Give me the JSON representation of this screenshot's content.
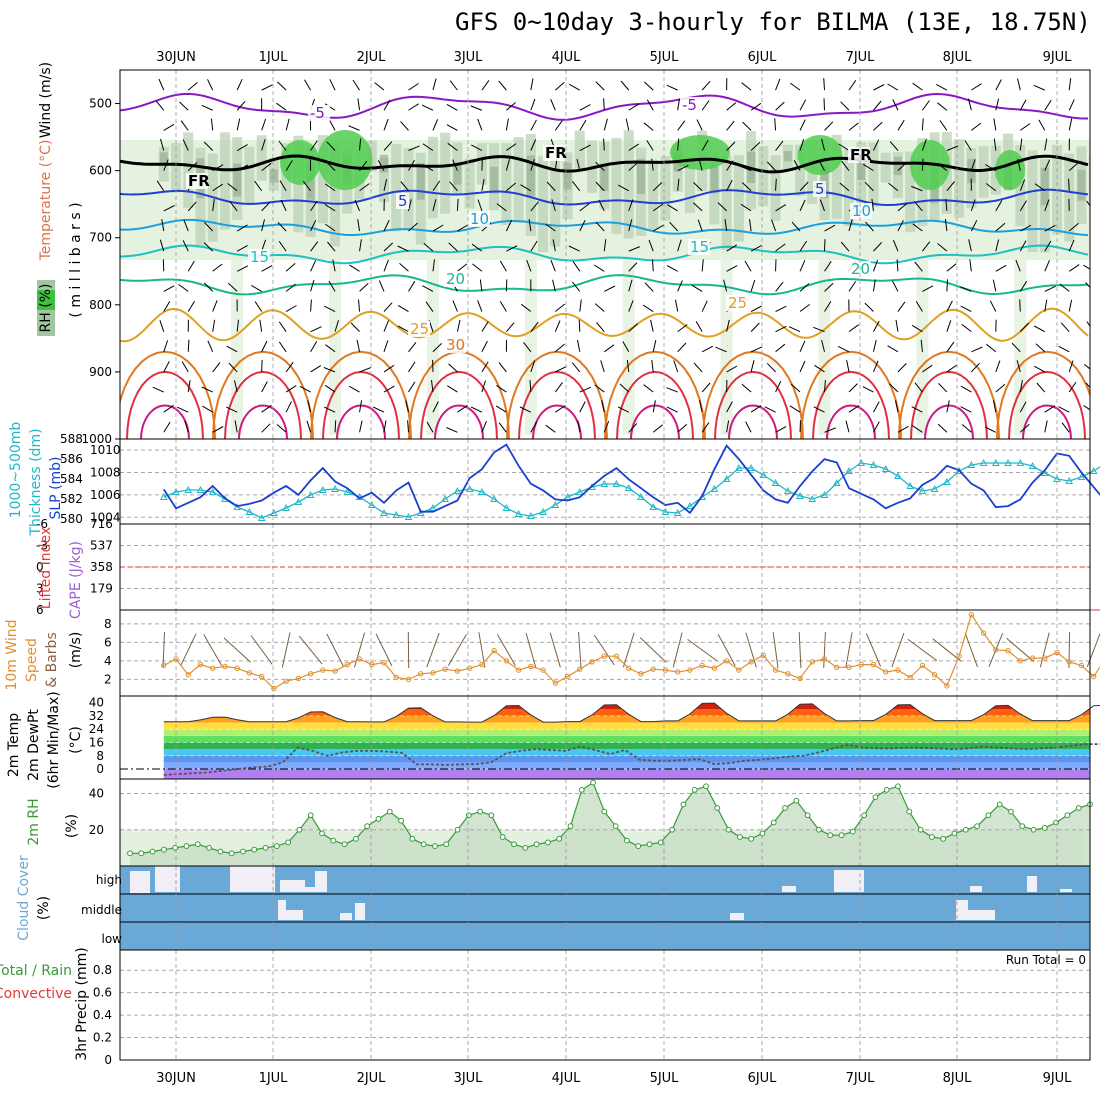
{
  "title": "GFS 0~10day 3-hourly for BILMA (13E, 18.75N)",
  "dates": [
    "30JUN",
    "1JUL",
    "2JUL",
    "3JUL",
    "4JUL",
    "5JUL",
    "6JUL",
    "7JUL",
    "8JUL",
    "9JUL"
  ],
  "colors": {
    "temp_minus5": "#8a17c4",
    "temp_5": "#1f3fd0",
    "temp_10": "#1a9fe0",
    "temp_15": "#1fc0c0",
    "temp_20": "#16b890",
    "temp_25": "#e0a020",
    "temp_30": "#e07820",
    "temp_35": "#e03040",
    "temp_40": "#d01880",
    "rh_light": "#e6f2e0",
    "rh_mid": "#b8cfb4",
    "rh_dark": "#8fa88c",
    "rh_green": "#50cc50",
    "cape_bar": "#c080f0",
    "lifted": "#e03a3a",
    "slp": "#1a3fd0",
    "thickness": "#20b8c8",
    "wind_speed": "#e09030",
    "wind_barb": "#7a6040",
    "rh2m": "#3a9a3a",
    "cloud_bg": "#6aa8d8",
    "cloud_bar": "#f2eef6"
  },
  "labels": {
    "panel1_left": [
      "Wind (m/s)",
      "Temperature (°C)",
      "RH (%)",
      "( m i l l i b a r s )"
    ],
    "panel2_left": [
      "1000~500mb",
      "Thickness (dm)",
      "SLP (mb)"
    ],
    "panel3_left": [
      "Lifted Index",
      "CAPE (J/kg)"
    ],
    "panel4_left": [
      "10m Wind",
      "Speed",
      "& Barbs",
      "(m/s)"
    ],
    "panel5_left": [
      "2m Temp",
      "2m DewPt",
      "(6hr Min/Max)",
      "(°C)"
    ],
    "panel6_left": [
      "2m RH",
      "(%)"
    ],
    "panel7_left": [
      "Cloud Cover",
      "(%)"
    ],
    "panel8_left": [
      "Total / Rain",
      "Convective",
      "3hr Precip (mm)"
    ],
    "contour_labels": [
      "-5",
      "-5",
      "FR",
      "FR",
      "FR",
      "5",
      "5",
      "10",
      "10",
      "15",
      "15",
      "20",
      "20",
      "25",
      "25",
      "30"
    ],
    "cloud_levels": [
      "high",
      "middle",
      "low"
    ],
    "run_total": "Run Total = 0"
  },
  "chart_data": [
    {
      "type": "heatmap",
      "name": "pressure-time cross section",
      "yaxis": {
        "label": "millibars",
        "ticks": [
          500,
          600,
          700,
          800,
          900,
          1000
        ],
        "range": [
          450,
          1000
        ],
        "inverted": true
      },
      "x": {
        "start": "29JUN 21Z",
        "step_hours": 3
      },
      "temperature_contours_C": [
        -5,
        0,
        5,
        10,
        15,
        20,
        25,
        30,
        35,
        40
      ],
      "freezing_level_mb": 590,
      "levels_mb": {
        "-5": 505,
        "5": 640,
        "10": 685,
        "15": 725,
        "20": 770,
        "25": 830
      },
      "rh_shading": "RH (%)"
    },
    {
      "type": "line",
      "name": "SLP and thickness",
      "slp_axis": {
        "ticks": [
          1004,
          1006,
          1008,
          1010
        ],
        "range": [
          1003.4,
          1011
        ]
      },
      "thickness_axis": {
        "ticks": [
          580,
          582,
          584,
          586,
          588
        ],
        "range": [
          579.5,
          588
        ]
      },
      "slp_mb": [
        1006.5,
        1004.8,
        1005.3,
        1005.8,
        1006.8,
        1005.7,
        1005.0,
        1005.2,
        1005.5,
        1006.2,
        1006.8,
        1006.0,
        1007.3,
        1008.4,
        1007.2,
        1006.6,
        1005.7,
        1006.2,
        1005.3,
        1006.4,
        1007.1,
        1004.5,
        1004.5,
        1005.0,
        1005.5,
        1007.5,
        1008.3,
        1009.8,
        1010.5,
        1008.6,
        1007.0,
        1006.4,
        1005.6,
        1005.5,
        1005.8,
        1006.8,
        1007.7,
        1008.4,
        1007.4,
        1006.6,
        1005.8,
        1005.1,
        1005.3,
        1004.4,
        1005.9,
        1008.3,
        1010.4,
        1009.2,
        1007.8,
        1006.4,
        1005.6,
        1005.3,
        1006.8,
        1008.1,
        1009.2,
        1008.9,
        1006.6,
        1006.1,
        1005.6,
        1004.8,
        1005.3,
        1005.7,
        1006.9,
        1007.5,
        1008.6,
        1008.2,
        1007.0,
        1006.4,
        1004.9,
        1005.0,
        1005.6,
        1007.1,
        1008.2,
        1009.7,
        1009.5,
        1008.0,
        1006.7,
        1005.4,
        1005.2,
        1005.6,
        1006.0,
        1007.2,
        1008.5,
        1009.0,
        1008.1,
        1007.4,
        1006.0,
        1005.0,
        1004.6,
        1004.2,
        1005.4,
        1006.3,
        1006.8,
        1007.3,
        1008.3,
        1008.6,
        1007.5,
        1005.8,
        1004.2,
        1004.9,
        1005.6,
        1006.2,
        1006.3,
        1004.6,
        1005.2,
        1006.3,
        1007.7
      ],
      "thickness_dm": [
        582.2,
        582.7,
        582.9,
        582.9,
        582.7,
        582.0,
        581.2,
        580.7,
        580.1,
        580.6,
        581.1,
        581.7,
        582.4,
        582.9,
        583.0,
        582.7,
        582.2,
        581.4,
        580.6,
        580.4,
        580.2,
        580.6,
        581.1,
        582.0,
        582.8,
        583.0,
        582.7,
        582.0,
        581.1,
        580.5,
        580.3,
        580.7,
        581.4,
        582.2,
        582.7,
        583.2,
        583.5,
        583.5,
        583.1,
        582.2,
        581.2,
        580.7,
        580.6,
        581.3,
        582.2,
        583.0,
        584.0,
        585.1,
        585.1,
        584.4,
        583.6,
        582.8,
        582.3,
        582.0,
        582.4,
        583.6,
        584.8,
        585.6,
        585.4,
        585.0,
        584.3,
        583.3,
        582.8,
        583.0,
        583.7,
        584.8,
        585.4,
        585.6,
        585.6,
        585.6,
        585.6,
        585.3,
        584.6,
        584.0,
        583.8,
        584.2,
        584.8,
        585.6,
        586.1,
        586.5,
        586.4,
        586.0,
        585.0,
        584.0,
        583.6,
        584.1,
        585.2,
        586.0,
        586.2,
        585.8,
        585.6,
        585.2,
        584.7,
        584.1,
        583.2,
        583.0,
        583.4,
        584.4,
        585.5,
        586.6,
        586.3,
        585.4,
        584.9,
        584.2,
        583.6,
        583.8,
        584.3
      ]
    },
    {
      "type": "bar",
      "name": "CAPE and Lifted Index",
      "cape_axis": {
        "ticks": [
          179,
          358,
          537,
          716
        ],
        "range": [
          0,
          716
        ]
      },
      "li_axis": {
        "ticks": [
          6,
          3,
          0,
          -3,
          -6
        ],
        "range": [
          6,
          -6
        ],
        "inverted": true
      },
      "cape_Jkg": [
        0,
        0,
        0,
        0,
        0,
        0,
        0,
        0,
        0,
        0,
        0,
        0,
        0,
        0,
        0,
        0,
        0,
        0,
        0,
        0,
        0,
        0,
        0,
        0,
        0,
        0,
        0,
        0,
        0,
        0,
        0,
        0,
        0,
        0,
        0,
        0,
        0,
        0,
        0,
        0,
        0,
        0,
        0,
        0,
        0,
        0,
        0,
        0,
        0,
        0,
        0,
        0,
        0,
        0,
        0,
        0,
        0,
        0,
        0,
        0,
        0,
        0,
        0,
        0,
        0,
        0,
        0,
        0,
        0,
        0,
        0,
        0,
        0,
        0,
        0,
        0,
        0,
        0,
        0,
        0,
        0,
        0,
        0,
        0,
        0,
        0,
        0,
        0,
        0,
        0,
        0,
        0,
        0,
        0,
        0,
        0,
        0,
        0,
        0,
        0,
        0,
        0,
        0,
        0,
        0,
        0,
        0
      ],
      "lifted_index": [
        6,
        6,
        6,
        6,
        6,
        6,
        6,
        6,
        6,
        6,
        6,
        6,
        6,
        6,
        6,
        6,
        6,
        6,
        6,
        6,
        6,
        6,
        6,
        6,
        6,
        6,
        6,
        6,
        6,
        6,
        6,
        6,
        6,
        6,
        6,
        6,
        6,
        6,
        6,
        6,
        6,
        6,
        6,
        6,
        6,
        6,
        6,
        6,
        6,
        6,
        6,
        6,
        6,
        6,
        6,
        6,
        6,
        6,
        6,
        6,
        6,
        6,
        6,
        6,
        6,
        6,
        6,
        6,
        6,
        6,
        6,
        6,
        6,
        6,
        6,
        6,
        6,
        6,
        6,
        6,
        6,
        6,
        6,
        6,
        6,
        6,
        6,
        6,
        6,
        6,
        6,
        6,
        6,
        6,
        6,
        6,
        6,
        6,
        6,
        6,
        6,
        6,
        6,
        6,
        6,
        6,
        6
      ]
    },
    {
      "type": "line",
      "name": "10m wind speed and barbs",
      "yaxis": {
        "ticks": [
          2,
          4,
          6,
          8
        ],
        "range": [
          0.2,
          9.5
        ]
      },
      "wind_speed_ms": [
        3.5,
        4.2,
        2.5,
        3.6,
        3.2,
        3.4,
        3.2,
        2.7,
        2.3,
        1.0,
        1.8,
        2.1,
        2.6,
        3.0,
        2.9,
        3.6,
        4.2,
        3.6,
        3.8,
        2.2,
        2.0,
        2.6,
        2.7,
        3.1,
        2.9,
        3.2,
        3.6,
        5.1,
        4.0,
        3.0,
        3.4,
        3.0,
        1.6,
        2.3,
        3.1,
        3.9,
        4.5,
        4.5,
        3.2,
        2.6,
        3.1,
        3.0,
        2.8,
        3.0,
        3.5,
        3.2,
        4.0,
        3.0,
        3.9,
        4.6,
        3.0,
        2.6,
        2.1,
        3.9,
        4.2,
        3.3,
        3.3,
        3.6,
        3.6,
        2.8,
        3.0,
        2.2,
        3.5,
        2.5,
        1.3,
        4.5,
        9.0,
        7.0,
        5.2,
        5.1,
        4.0,
        4.3,
        4.3,
        4.9,
        3.9,
        3.5,
        2.3,
        4.3,
        2.0,
        1.5,
        1.6,
        4.0,
        3.5,
        4.3,
        3.1,
        3.3,
        3.3,
        3.9,
        3.5,
        2.9,
        3.4,
        2.8,
        3.9,
        4.1,
        3.6,
        3.6,
        3.7,
        3.4,
        4.5,
        3.7,
        4.0,
        3.6,
        4.0,
        1.8,
        3.7,
        4.9,
        5.3
      ]
    },
    {
      "type": "area",
      "name": "2m temperature and dew point",
      "yaxis": {
        "ticks": [
          0,
          8,
          16,
          24,
          32,
          40
        ],
        "range": [
          -6,
          44
        ]
      },
      "temp_max_C": [
        31.5,
        34.9,
        37.5,
        39.0,
        39.5,
        40.5,
        40.0,
        39.5,
        39.0
      ],
      "temp_min_C": [
        28.5,
        28.5,
        28.4,
        28.3,
        28.6,
        29.0,
        29.0,
        29.2,
        29.2
      ],
      "dewpoint_C": [
        -3.5,
        -3.0,
        -2.5,
        -2.0,
        -1.0,
        0.0,
        1.0,
        1.5,
        4.0,
        13.0,
        11.0,
        8.0,
        10.0,
        11.0,
        11.0,
        10.5,
        9.8,
        2.8,
        2.8,
        2.5,
        2.8,
        3.0,
        4.0,
        9.5,
        11.0,
        12.0,
        11.5,
        11.0,
        13.5,
        11.5,
        9.0,
        11.5,
        5.5,
        5.0,
        5.0,
        5.5,
        6.0,
        3.0,
        3.5,
        5.0,
        5.5,
        6.5,
        7.5,
        8.0,
        10.0,
        12.5,
        14.5,
        13.0,
        12.5,
        12.5,
        13.0,
        12.8,
        12.5,
        12.0,
        12.5,
        13.5,
        13.0,
        12.5,
        12.0,
        12.5,
        13.0,
        14.0,
        15.0,
        15.0,
        15.5,
        15.0,
        13.0,
        13.0,
        14.0,
        14.5,
        15.0,
        13.5,
        13.5,
        14.0,
        14.8,
        15.0,
        15.0,
        16.5,
        15.0,
        13.5,
        13.0,
        12.5,
        12.0,
        12.5,
        13.0,
        13.5,
        13.5,
        13.0
      ]
    },
    {
      "type": "area",
      "name": "2m relative humidity",
      "yaxis": {
        "ticks": [
          20,
          40
        ],
        "range": [
          0,
          48
        ]
      },
      "rh_percent": [
        7,
        7,
        8,
        9,
        10,
        11,
        12,
        10,
        8,
        7,
        8,
        9,
        10,
        11,
        13,
        20,
        28,
        18,
        14,
        12,
        15,
        22,
        26,
        30,
        25,
        15,
        12,
        11,
        12,
        20,
        28,
        30,
        28,
        16,
        12,
        10,
        12,
        13,
        15,
        22,
        42,
        46,
        30,
        22,
        14,
        11,
        12,
        13,
        20,
        34,
        42,
        44,
        32,
        20,
        16,
        15,
        18,
        24,
        32,
        36,
        28,
        20,
        17,
        17,
        19,
        28,
        38,
        42,
        44,
        30,
        20,
        16,
        15,
        18,
        20,
        22,
        28,
        34,
        30,
        22,
        20,
        21,
        24,
        28,
        32,
        34
      ]
    },
    {
      "type": "bar",
      "name": "cloud cover",
      "levels": [
        "high",
        "middle",
        "low"
      ],
      "high_percent": [
        0,
        40,
        80,
        75,
        0,
        0,
        0,
        0,
        0,
        0,
        0,
        0,
        0,
        0,
        0,
        0,
        0,
        0,
        0,
        0,
        0,
        0,
        0,
        0,
        0,
        0,
        0,
        0,
        0,
        0,
        0,
        0,
        0,
        0,
        0,
        0,
        0,
        0,
        0,
        0,
        0,
        0,
        0,
        0,
        0,
        0,
        0,
        0,
        0,
        0,
        0,
        0,
        0,
        0,
        0,
        0,
        0,
        0,
        0,
        0,
        0,
        0,
        0,
        0,
        0,
        0,
        0,
        0,
        0,
        0,
        0,
        0,
        0,
        0,
        0,
        0,
        0,
        0,
        0,
        0,
        0,
        0,
        0,
        0,
        0,
        0,
        0,
        0,
        0,
        0,
        0,
        0,
        0,
        0,
        0,
        0,
        0,
        0,
        0,
        0,
        0,
        0,
        0,
        0,
        0,
        0,
        0
      ],
      "middle_percent": [
        0,
        0,
        0,
        0,
        0,
        0,
        0,
        0,
        0,
        0,
        0,
        0,
        0,
        0,
        0,
        0,
        0,
        0,
        0,
        0,
        0,
        0,
        0,
        0,
        0,
        0,
        0,
        0,
        0,
        0,
        0,
        0,
        0,
        0,
        0,
        0,
        0,
        0,
        0,
        0,
        0,
        0,
        0,
        0,
        0,
        0,
        0,
        0,
        0,
        0,
        0,
        0,
        0,
        0,
        0,
        0,
        0,
        0,
        0,
        0,
        0,
        0,
        0,
        0,
        0,
        0,
        0,
        0,
        0,
        0,
        0,
        0,
        0,
        0,
        0,
        0,
        0,
        0,
        0,
        0,
        0,
        0,
        0,
        0,
        0,
        0,
        0,
        0,
        0,
        0,
        0,
        0,
        0,
        0,
        0,
        0,
        0,
        0,
        0,
        0,
        0,
        0,
        0,
        0,
        0,
        0,
        0
      ],
      "low_percent": [
        0,
        0,
        0,
        0,
        0,
        0,
        0,
        0,
        0,
        0,
        0,
        0,
        0,
        0,
        0,
        0,
        0,
        0,
        0,
        0,
        0,
        0,
        0,
        0,
        0,
        0,
        0,
        0,
        0,
        0,
        0,
        0,
        0,
        0,
        0,
        0,
        0,
        0,
        0,
        0,
        0,
        0,
        0,
        0,
        0,
        0,
        0,
        0,
        0,
        0,
        0,
        0,
        0,
        0,
        0,
        0,
        0,
        0,
        0,
        0,
        0,
        0,
        0,
        0,
        0,
        0,
        0,
        0,
        0,
        0,
        0,
        0,
        0,
        0,
        0,
        0,
        0,
        0,
        0,
        0,
        0,
        0,
        0,
        0,
        0,
        0,
        0,
        0,
        0,
        0,
        0,
        0,
        0,
        0,
        0,
        0,
        0,
        0,
        0,
        0,
        0,
        0,
        0,
        0,
        0,
        0,
        0
      ]
    },
    {
      "type": "bar",
      "name": "3hr precipitation",
      "yaxis": {
        "ticks": [
          0,
          0.2,
          0.4,
          0.6,
          0.8
        ],
        "range": [
          0,
          0.98
        ]
      },
      "precip_mm": [
        0
      ],
      "run_total_mm": 0
    }
  ]
}
